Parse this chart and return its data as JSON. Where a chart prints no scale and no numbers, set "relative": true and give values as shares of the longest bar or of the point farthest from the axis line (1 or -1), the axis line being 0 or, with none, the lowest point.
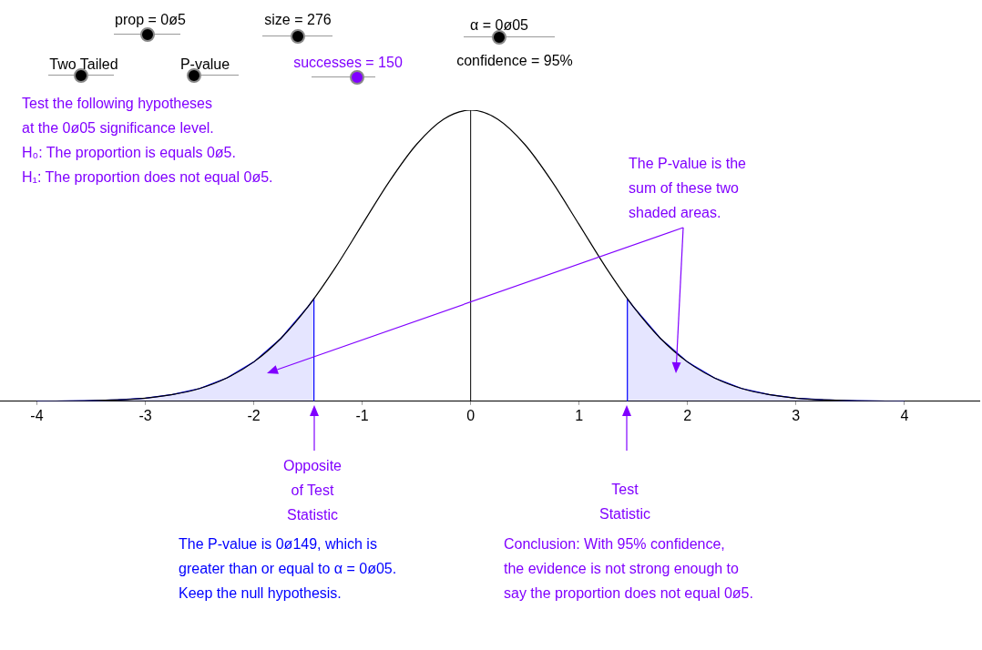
{
  "chart_data": {
    "type": "line",
    "relative": true,
    "xlim": [
      -4.34,
      4.69
    ],
    "xticks": [
      -4,
      -3,
      -2,
      -1,
      0,
      1,
      2,
      3,
      4
    ],
    "grid": false,
    "legend": false,
    "marker": "none",
    "x": [
      -4,
      -3.5,
      -3.25,
      -3,
      -2.75,
      -2.5,
      -2.25,
      -2,
      -1.75,
      -1.5,
      -1.25,
      -1,
      -0.75,
      -0.5,
      -0.25,
      0,
      0.25,
      0.5,
      0.75,
      1,
      1.25,
      1.5,
      1.75,
      2,
      2.25,
      2.5,
      2.75,
      3,
      3.25,
      3.5,
      4
    ],
    "series": [
      {
        "color": "#000000",
        "values": [
          0,
          0.002,
          0.005,
          0.011,
          0.023,
          0.044,
          0.08,
          0.135,
          0.216,
          0.325,
          0.458,
          0.607,
          0.755,
          0.882,
          0.969,
          1,
          0.969,
          0.882,
          0.755,
          0.607,
          0.458,
          0.325,
          0.216,
          0.135,
          0.08,
          0.044,
          0.023,
          0.011,
          0.005,
          0.002,
          0
        ]
      },
      {
        "type": "area",
        "color": "#0000ff",
        "x": [
          -4,
          -3.5,
          -3.25,
          -3,
          -2.75,
          -2.5,
          -2.25,
          -2,
          -1.75,
          -1.5,
          -1.445,
          -1.445
        ],
        "values": [
          0,
          0.002,
          0.005,
          0.011,
          0.023,
          0.044,
          0.08,
          0.135,
          0.216,
          0.325,
          0.352,
          0
        ]
      },
      {
        "type": "area",
        "color": "#0000ff",
        "x": [
          1.445,
          1.445,
          1.5,
          1.75,
          2,
          2.25,
          2.5,
          2.75,
          3,
          3.25,
          3.5,
          4
        ],
        "values": [
          0,
          0.352,
          0.325,
          0.216,
          0.135,
          0.08,
          0.044,
          0.023,
          0.011,
          0.005,
          0.002,
          0
        ]
      }
    ],
    "ref_lines": [
      {
        "axis": "x",
        "value": 0,
        "color": "#000000"
      }
    ],
    "annotations": [
      "prop = 0ø5",
      "size = 276",
      "α = 0ø05",
      "Two Tailed",
      "P-value",
      "successes = 150",
      "confidence = 95%",
      "Test the following hypotheses\nat the 0ø05 significance level.\nH₀: The proportion is equals 0ø5.\nH₁: The proportion does not equal 0ø5.",
      "The P-value is the\nsum of these two\nshaded areas.",
      "Opposite\nof Test\nStatistic",
      "Test\nStatistic",
      "The P-value is 0ø149, which is\ngreater than or equal to α = 0ø05.\nKeep the null hypothesis.",
      "Conclusion: With 95% confidence,\nthe evidence is not strong enough to\nsay the proportion does not equal 0ø5."
    ]
  }
}
